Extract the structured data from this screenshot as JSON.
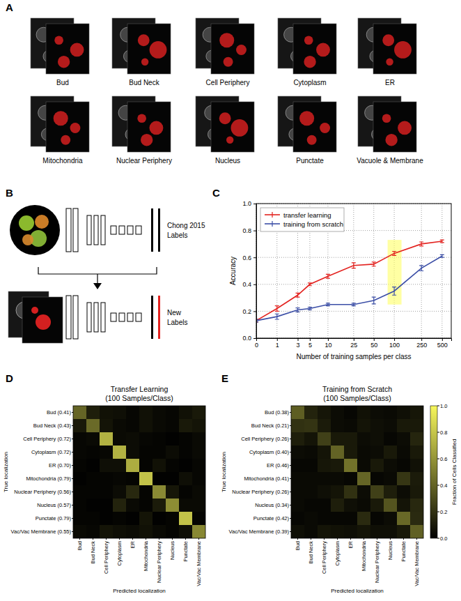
{
  "panel_labels": [
    "A",
    "B",
    "C",
    "D",
    "E"
  ],
  "panel_a": {
    "images": [
      "Bud",
      "Bud Neck",
      "Cell Periphery",
      "Cytoplasm",
      "ER",
      "Mitochondria",
      "Nuclear Periphery",
      "Nucleus",
      "Punctate",
      "Vacuole & Membrane"
    ]
  },
  "panel_b": {
    "labels_top": [
      "Chong 2015",
      "Labels"
    ],
    "labels_bottom": [
      "New",
      "Labels"
    ]
  },
  "chart_data": [
    {
      "type": "line",
      "x_label": "Number of training samples per class",
      "y_label": "Accuracy",
      "x": [
        0,
        1,
        3,
        5,
        10,
        25,
        50,
        100,
        250,
        500
      ],
      "xlim": [
        0,
        680
      ],
      "xticks": [
        0,
        1,
        3,
        5,
        10,
        25,
        50,
        100,
        250,
        500
      ],
      "ylim": [
        0,
        1
      ],
      "yticks": [
        {
          "value": 0,
          "label": "0.0"
        },
        {
          "value": 0.2,
          "label": "0.2"
        },
        {
          "value": 0.4,
          "label": "0.4"
        },
        {
          "value": 0.6,
          "label": "0.6"
        },
        {
          "value": 0.8,
          "label": "0.8"
        },
        {
          "value": 1,
          "label": "1.0"
        }
      ],
      "log": "x",
      "grid": true,
      "legend": "upper-left",
      "series": [
        {
          "name": "transfer learning",
          "color": "#e3221f",
          "values": [
            0.13,
            0.22,
            0.32,
            0.4,
            0.46,
            0.54,
            0.55,
            0.63,
            0.7,
            0.72
          ],
          "errors": [
            0.01,
            0.02,
            0.015,
            0.01,
            0.015,
            0.02,
            0.015,
            0.015,
            0.015,
            0.01
          ]
        },
        {
          "name": "training from scratch",
          "color": "#3b4ea6",
          "values": [
            0.13,
            0.16,
            0.21,
            0.22,
            0.25,
            0.25,
            0.28,
            0.35,
            0.52,
            0.61
          ],
          "errors": [
            0.01,
            0.02,
            0.015,
            0.01,
            0.01,
            0.01,
            0.025,
            0.03,
            0.02,
            0.01
          ]
        }
      ],
      "highlight": {
        "x": [
          80,
          128
        ],
        "y": [
          0.25,
          0.73
        ]
      }
    },
    {
      "type": "heatmap",
      "title": "Transfer Learning",
      "subtitle": "(100 Samples/Class)",
      "x_label": "Predicted localization",
      "y_label": "True localization",
      "x_categories": [
        "Bud",
        "Bud Neck",
        "Cell Periphery",
        "Cytoplasm",
        "ER",
        "Mitochondria",
        "Nuclear Periphery",
        "Nucleus",
        "Punctate",
        "Vac/Vac Membrane"
      ],
      "y_categories": [
        "Bud (0.41)",
        "Bud Neck (0.43)",
        "Cell Periphery (0.72)",
        "Cytoplasm (0.72)",
        "ER (0.70)",
        "Mitochondria (0.79)",
        "Nuclear Periphery (0.56)",
        "Nucleus (0.57)",
        "Punctate (0.79)",
        "Vac/Vac Membrane (0.55)"
      ],
      "cells": [
        [
          0.41,
          0.12,
          0.07,
          0.06,
          0.03,
          0.07,
          0.04,
          0.03,
          0.07,
          0.1
        ],
        [
          0.1,
          0.43,
          0.08,
          0.04,
          0.03,
          0.07,
          0.04,
          0.03,
          0.1,
          0.08
        ],
        [
          0.03,
          0.04,
          0.72,
          0.04,
          0.05,
          0.03,
          0.02,
          0.01,
          0.02,
          0.04
        ],
        [
          0.03,
          0.02,
          0.03,
          0.72,
          0.05,
          0.02,
          0.02,
          0.05,
          0.02,
          0.04
        ],
        [
          0.02,
          0.01,
          0.06,
          0.06,
          0.7,
          0.02,
          0.07,
          0.02,
          0.01,
          0.03
        ],
        [
          0.01,
          0.02,
          0.02,
          0.03,
          0.02,
          0.79,
          0.01,
          0.01,
          0.06,
          0.03
        ],
        [
          0.02,
          0.02,
          0.02,
          0.05,
          0.16,
          0.02,
          0.56,
          0.09,
          0.02,
          0.04
        ],
        [
          0.02,
          0.01,
          0.01,
          0.14,
          0.04,
          0.02,
          0.11,
          0.57,
          0.04,
          0.04
        ],
        [
          0.02,
          0.02,
          0.01,
          0.02,
          0.01,
          0.08,
          0.01,
          0.02,
          0.79,
          0.02
        ],
        [
          0.04,
          0.03,
          0.08,
          0.06,
          0.05,
          0.07,
          0.04,
          0.02,
          0.06,
          0.55
        ]
      ]
    },
    {
      "type": "heatmap",
      "title": "Training from Scratch",
      "subtitle": "(100 Samples/Class)",
      "x_label": "Predicted localization",
      "y_label": "True localization",
      "x_categories": [
        "Bud",
        "Bud Neck",
        "Cell Periphery",
        "Cytoplasm",
        "ER",
        "Mitochondria",
        "Nuclear Periphery",
        "Nucleus",
        "Punctate",
        "Vac/Vac Membrane"
      ],
      "y_categories": [
        "Bud (0.38)",
        "Bud Neck (0.21)",
        "Cell Periphery (0.26)",
        "Cytoplasm (0.40)",
        "ER (0.46)",
        "Mitochondria (0.41)",
        "Nuclear Periphery (0.26)",
        "Nucleus (0.34)",
        "Punctate (0.42)",
        "Vac/Vac Membrane (0.39)"
      ],
      "cells": [
        [
          0.38,
          0.14,
          0.09,
          0.05,
          0.03,
          0.07,
          0.05,
          0.04,
          0.06,
          0.09
        ],
        [
          0.2,
          0.21,
          0.11,
          0.05,
          0.04,
          0.08,
          0.06,
          0.05,
          0.1,
          0.1
        ],
        [
          0.12,
          0.08,
          0.26,
          0.1,
          0.1,
          0.05,
          0.06,
          0.03,
          0.05,
          0.15
        ],
        [
          0.05,
          0.04,
          0.08,
          0.4,
          0.1,
          0.04,
          0.05,
          0.1,
          0.04,
          0.1
        ],
        [
          0.03,
          0.03,
          0.09,
          0.1,
          0.46,
          0.04,
          0.1,
          0.05,
          0.03,
          0.07
        ],
        [
          0.04,
          0.04,
          0.04,
          0.04,
          0.03,
          0.41,
          0.03,
          0.04,
          0.22,
          0.11
        ],
        [
          0.04,
          0.04,
          0.06,
          0.08,
          0.2,
          0.05,
          0.26,
          0.12,
          0.05,
          0.1
        ],
        [
          0.04,
          0.03,
          0.03,
          0.12,
          0.06,
          0.04,
          0.1,
          0.34,
          0.08,
          0.16
        ],
        [
          0.03,
          0.04,
          0.03,
          0.03,
          0.03,
          0.17,
          0.03,
          0.05,
          0.42,
          0.17
        ],
        [
          0.06,
          0.04,
          0.08,
          0.07,
          0.06,
          0.08,
          0.06,
          0.06,
          0.1,
          0.39
        ]
      ],
      "colorbar": {
        "range": [
          0,
          1
        ],
        "ticks": [
          {
            "value": 0,
            "label": "0.0"
          },
          {
            "value": 0.2,
            "label": "0.2"
          },
          {
            "value": 0.4,
            "label": "0.4"
          },
          {
            "value": 0.6,
            "label": "0.6"
          },
          {
            "value": 0.8,
            "label": "0.8"
          },
          {
            "value": 1,
            "label": "1.0"
          }
        ],
        "label": "Fraction of Cells Classified"
      }
    }
  ]
}
